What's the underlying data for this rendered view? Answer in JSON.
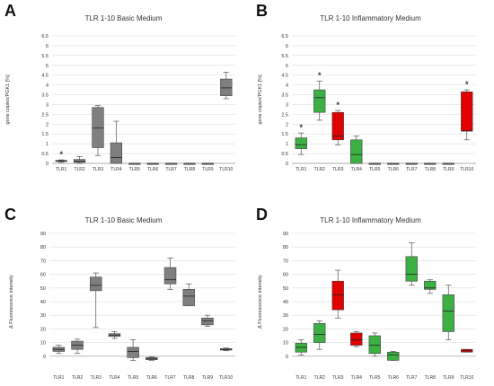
{
  "colors": {
    "gray_box": "#7f7f7f",
    "green_box": "#3cb043",
    "red_box": "#e00000",
    "grid": "#dddddd"
  },
  "chart_data": [
    {
      "id": "A",
      "type": "boxplot",
      "panel_label": "A",
      "title": "TLR 1-10 Basic Medium",
      "ylabel": "gene copies/PGK1 [%]",
      "ylim": [
        0,
        6.5
      ],
      "yticks": [
        "0",
        "0.5",
        "1",
        "1.5",
        "2",
        "2.5",
        "3",
        "3.5",
        "4",
        "4.5",
        "5",
        "5.5",
        "6",
        "6.5"
      ],
      "categories": [
        "TLR1",
        "TLR2",
        "TLR3",
        "TLR4",
        "TLR5",
        "TLR6",
        "TLR7",
        "TLR8",
        "TLR9",
        "TLR10"
      ],
      "boxes": [
        {
          "min": 0.05,
          "q1": 0.1,
          "median": 0.12,
          "q3": 0.15,
          "max": 0.18,
          "color": "gray",
          "star": true
        },
        {
          "min": 0.0,
          "q1": 0.05,
          "median": 0.1,
          "q3": 0.2,
          "max": 0.35,
          "color": "gray",
          "star": false
        },
        {
          "min": 0.4,
          "q1": 0.8,
          "median": 1.8,
          "q3": 2.85,
          "max": 2.95,
          "color": "gray",
          "star": false
        },
        {
          "min": 0.0,
          "q1": 0.0,
          "median": 0.3,
          "q3": 1.05,
          "max": 2.15,
          "color": "gray",
          "star": false
        },
        {
          "min": 0.0,
          "q1": 0.0,
          "median": 0.0,
          "q3": 0.0,
          "max": 0.0,
          "color": "gray",
          "star": false
        },
        {
          "min": 0.0,
          "q1": 0.0,
          "median": 0.0,
          "q3": 0.0,
          "max": 0.0,
          "color": "gray",
          "star": false
        },
        {
          "min": 0.0,
          "q1": 0.0,
          "median": 0.0,
          "q3": 0.0,
          "max": 0.0,
          "color": "gray",
          "star": false
        },
        {
          "min": 0.0,
          "q1": 0.0,
          "median": 0.0,
          "q3": 0.0,
          "max": 0.0,
          "color": "gray",
          "star": false
        },
        {
          "min": 0.0,
          "q1": 0.0,
          "median": 0.0,
          "q3": 0.0,
          "max": 0.0,
          "color": "gray",
          "star": false
        },
        {
          "min": 3.3,
          "q1": 3.45,
          "median": 3.85,
          "q3": 4.3,
          "max": 4.65,
          "color": "gray",
          "star": false
        }
      ]
    },
    {
      "id": "B",
      "type": "boxplot",
      "panel_label": "B",
      "title": "TLR 1-10 Inflammatory Medium",
      "ylabel": "gene copies/PGK1 [%]",
      "ylim": [
        0,
        6.5
      ],
      "yticks": [
        "0",
        "0.5",
        "1",
        "1.5",
        "2",
        "2.5",
        "3",
        "3.5",
        "4",
        "4.5",
        "5",
        "5.5",
        "6",
        "6.5"
      ],
      "categories": [
        "TLR1",
        "TLR2",
        "TLR3",
        "TLR4",
        "TLR5",
        "TLR6",
        "TLR7",
        "TLR8",
        "TLR9",
        "TLR10"
      ],
      "boxes": [
        {
          "min": 0.45,
          "q1": 0.75,
          "median": 0.95,
          "q3": 1.3,
          "max": 1.55,
          "color": "green",
          "star": true
        },
        {
          "min": 2.2,
          "q1": 2.6,
          "median": 3.35,
          "q3": 3.75,
          "max": 4.2,
          "color": "green",
          "star": true
        },
        {
          "min": 0.95,
          "q1": 1.2,
          "median": 1.4,
          "q3": 2.6,
          "max": 2.7,
          "color": "red",
          "star": true
        },
        {
          "min": 0.0,
          "q1": 0.0,
          "median": 0.45,
          "q3": 1.2,
          "max": 1.4,
          "color": "green",
          "star": false
        },
        {
          "min": 0.0,
          "q1": 0.0,
          "median": 0.0,
          "q3": 0.0,
          "max": 0.0,
          "color": "gray",
          "star": false
        },
        {
          "min": 0.0,
          "q1": 0.0,
          "median": 0.0,
          "q3": 0.0,
          "max": 0.0,
          "color": "gray",
          "star": false
        },
        {
          "min": 0.0,
          "q1": 0.0,
          "median": 0.0,
          "q3": 0.0,
          "max": 0.0,
          "color": "gray",
          "star": false
        },
        {
          "min": 0.0,
          "q1": 0.0,
          "median": 0.0,
          "q3": 0.0,
          "max": 0.0,
          "color": "gray",
          "star": false
        },
        {
          "min": 0.0,
          "q1": 0.0,
          "median": 0.0,
          "q3": 0.0,
          "max": 0.0,
          "color": "gray",
          "star": false
        },
        {
          "min": 1.2,
          "q1": 1.65,
          "median": 1.65,
          "q3": 3.65,
          "max": 3.75,
          "color": "red",
          "star": true
        }
      ]
    },
    {
      "id": "C",
      "type": "boxplot",
      "panel_label": "C",
      "title": "TLR 1-10 Basic Medium",
      "ylabel": "Δ Fluorescence intensity",
      "ylim": [
        -10,
        90
      ],
      "yticks": [
        "0",
        "10",
        "20",
        "30",
        "40",
        "50",
        "60",
        "70",
        "80",
        "90"
      ],
      "categories": [
        "TLR1",
        "TLR2",
        "TLR3",
        "TLR4",
        "TLR5",
        "TLR6",
        "TLR7",
        "TLR8",
        "TLR9",
        "TLR10"
      ],
      "boxes": [
        {
          "min": 2,
          "q1": 3.5,
          "median": 5,
          "q3": 6.5,
          "max": 8,
          "color": "gray",
          "star": false
        },
        {
          "min": 2,
          "q1": 5,
          "median": 8,
          "q3": 11,
          "max": 12.5,
          "color": "gray",
          "star": false
        },
        {
          "min": 21,
          "q1": 48,
          "median": 52,
          "q3": 58,
          "max": 61,
          "color": "gray",
          "star": false
        },
        {
          "min": 13,
          "q1": 14.5,
          "median": 15.5,
          "q3": 16.5,
          "max": 18,
          "color": "gray",
          "star": false
        },
        {
          "min": -3,
          "q1": -1,
          "median": 3.5,
          "q3": 6.5,
          "max": 12,
          "color": "gray",
          "star": false
        },
        {
          "min": -3,
          "q1": -2.5,
          "median": -2,
          "q3": -1,
          "max": -0.5,
          "color": "gray",
          "star": false
        },
        {
          "min": 49,
          "q1": 53,
          "median": 56,
          "q3": 65,
          "max": 72,
          "color": "gray",
          "star": false
        },
        {
          "min": 37,
          "q1": 37,
          "median": 44,
          "q3": 49,
          "max": 53,
          "color": "gray",
          "star": false
        },
        {
          "min": 22,
          "q1": 23,
          "median": 26,
          "q3": 28,
          "max": 30,
          "color": "gray",
          "star": false
        },
        {
          "min": 4,
          "q1": 4.5,
          "median": 5,
          "q3": 5.5,
          "max": 6,
          "color": "gray",
          "star": false
        }
      ]
    },
    {
      "id": "D",
      "type": "boxplot",
      "panel_label": "D",
      "title": "TLR 1-10 Inflammatory Medium",
      "ylabel": "Δ Fluorescence intensity",
      "ylim": [
        -10,
        90
      ],
      "yticks": [
        "0",
        "10",
        "20",
        "30",
        "40",
        "50",
        "60",
        "70",
        "80",
        "90"
      ],
      "categories": [
        "TLR1",
        "TLR2",
        "TLR3",
        "TLR4",
        "TLR5",
        "TLR6",
        "TLR7",
        "TLR8",
        "TLR9",
        "TLR10"
      ],
      "boxes": [
        {
          "min": 1,
          "q1": 3,
          "median": 6.5,
          "q3": 9.5,
          "max": 12,
          "color": "green",
          "star": false
        },
        {
          "min": 5,
          "q1": 10,
          "median": 16,
          "q3": 24,
          "max": 26,
          "color": "green",
          "star": false
        },
        {
          "min": 28,
          "q1": 34,
          "median": 45,
          "q3": 55,
          "max": 63,
          "color": "red",
          "star": false
        },
        {
          "min": 7,
          "q1": 8,
          "median": 12,
          "q3": 17,
          "max": 18,
          "color": "red",
          "star": false
        },
        {
          "min": 0,
          "q1": 2,
          "median": 8,
          "q3": 15,
          "max": 17,
          "color": "green",
          "star": false
        },
        {
          "min": -3,
          "q1": -3,
          "median": 1,
          "q3": 3,
          "max": 3.5,
          "color": "green",
          "star": false
        },
        {
          "min": 52,
          "q1": 55,
          "median": 60,
          "q3": 73,
          "max": 83,
          "color": "green",
          "star": false
        },
        {
          "min": 46,
          "q1": 49,
          "median": 50,
          "q3": 55,
          "max": 56,
          "color": "green",
          "star": false
        },
        {
          "min": 12,
          "q1": 18,
          "median": 33,
          "q3": 45,
          "max": 52,
          "color": "green",
          "star": false
        },
        {
          "min": 3,
          "q1": 3,
          "median": 4,
          "q3": 5,
          "max": 5,
          "color": "red",
          "star": false
        }
      ]
    }
  ]
}
